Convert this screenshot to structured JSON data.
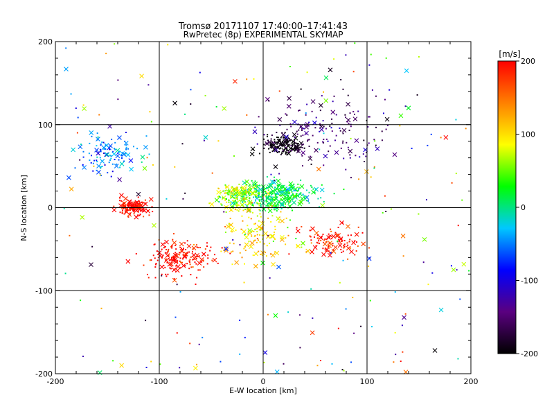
{
  "chart_data": {
    "type": "scatter",
    "title": "Tromsø 20171107 17:40:00–17:41:43",
    "subtitle": "RwPretec (8p) EXPERIMENTAL SKYMAP",
    "xlabel": "E-W location [km]",
    "ylabel": "N-S location [km]",
    "xlim": [
      -200,
      200
    ],
    "ylim": [
      -200,
      200
    ],
    "x_ticks": [
      "-200",
      "-100",
      "0",
      "100",
      "200"
    ],
    "y_ticks": [
      "-200",
      "-100",
      "0",
      "100",
      "200"
    ],
    "grid": true,
    "markers": [
      "x",
      "dot"
    ],
    "colorbar": {
      "label": "[m/s]",
      "range": [
        -200,
        200
      ],
      "ticks": [
        "200",
        "100",
        "0",
        "-100",
        "-200"
      ],
      "colors": [
        "#000000",
        "#5a0080",
        "#0000ff",
        "#00c8ff",
        "#00ff00",
        "#ffff00",
        "#ff8000",
        "#ff0000"
      ]
    },
    "clusters": [
      {
        "center": [
          -125,
          0
        ],
        "spread": [
          12,
          8
        ],
        "velocity": 200
      },
      {
        "center": [
          -80,
          -60
        ],
        "spread": [
          30,
          20
        ],
        "velocity": 200
      },
      {
        "center": [
          20,
          75
        ],
        "spread": [
          18,
          10
        ],
        "velocity": -200
      },
      {
        "center": [
          10,
          15
        ],
        "spread": [
          35,
          14
        ],
        "velocity": 10
      },
      {
        "center": [
          -25,
          15
        ],
        "spread": [
          20,
          12
        ],
        "velocity": 70
      },
      {
        "center": [
          -150,
          65
        ],
        "spread": [
          25,
          20
        ],
        "velocity": -50
      },
      {
        "center": [
          70,
          -40
        ],
        "spread": [
          25,
          15
        ],
        "velocity": 190
      },
      {
        "center": [
          -5,
          -30
        ],
        "spread": [
          30,
          30
        ],
        "velocity": 100
      },
      {
        "center": [
          60,
          95
        ],
        "spread": [
          50,
          40
        ],
        "velocity": -150
      }
    ]
  }
}
